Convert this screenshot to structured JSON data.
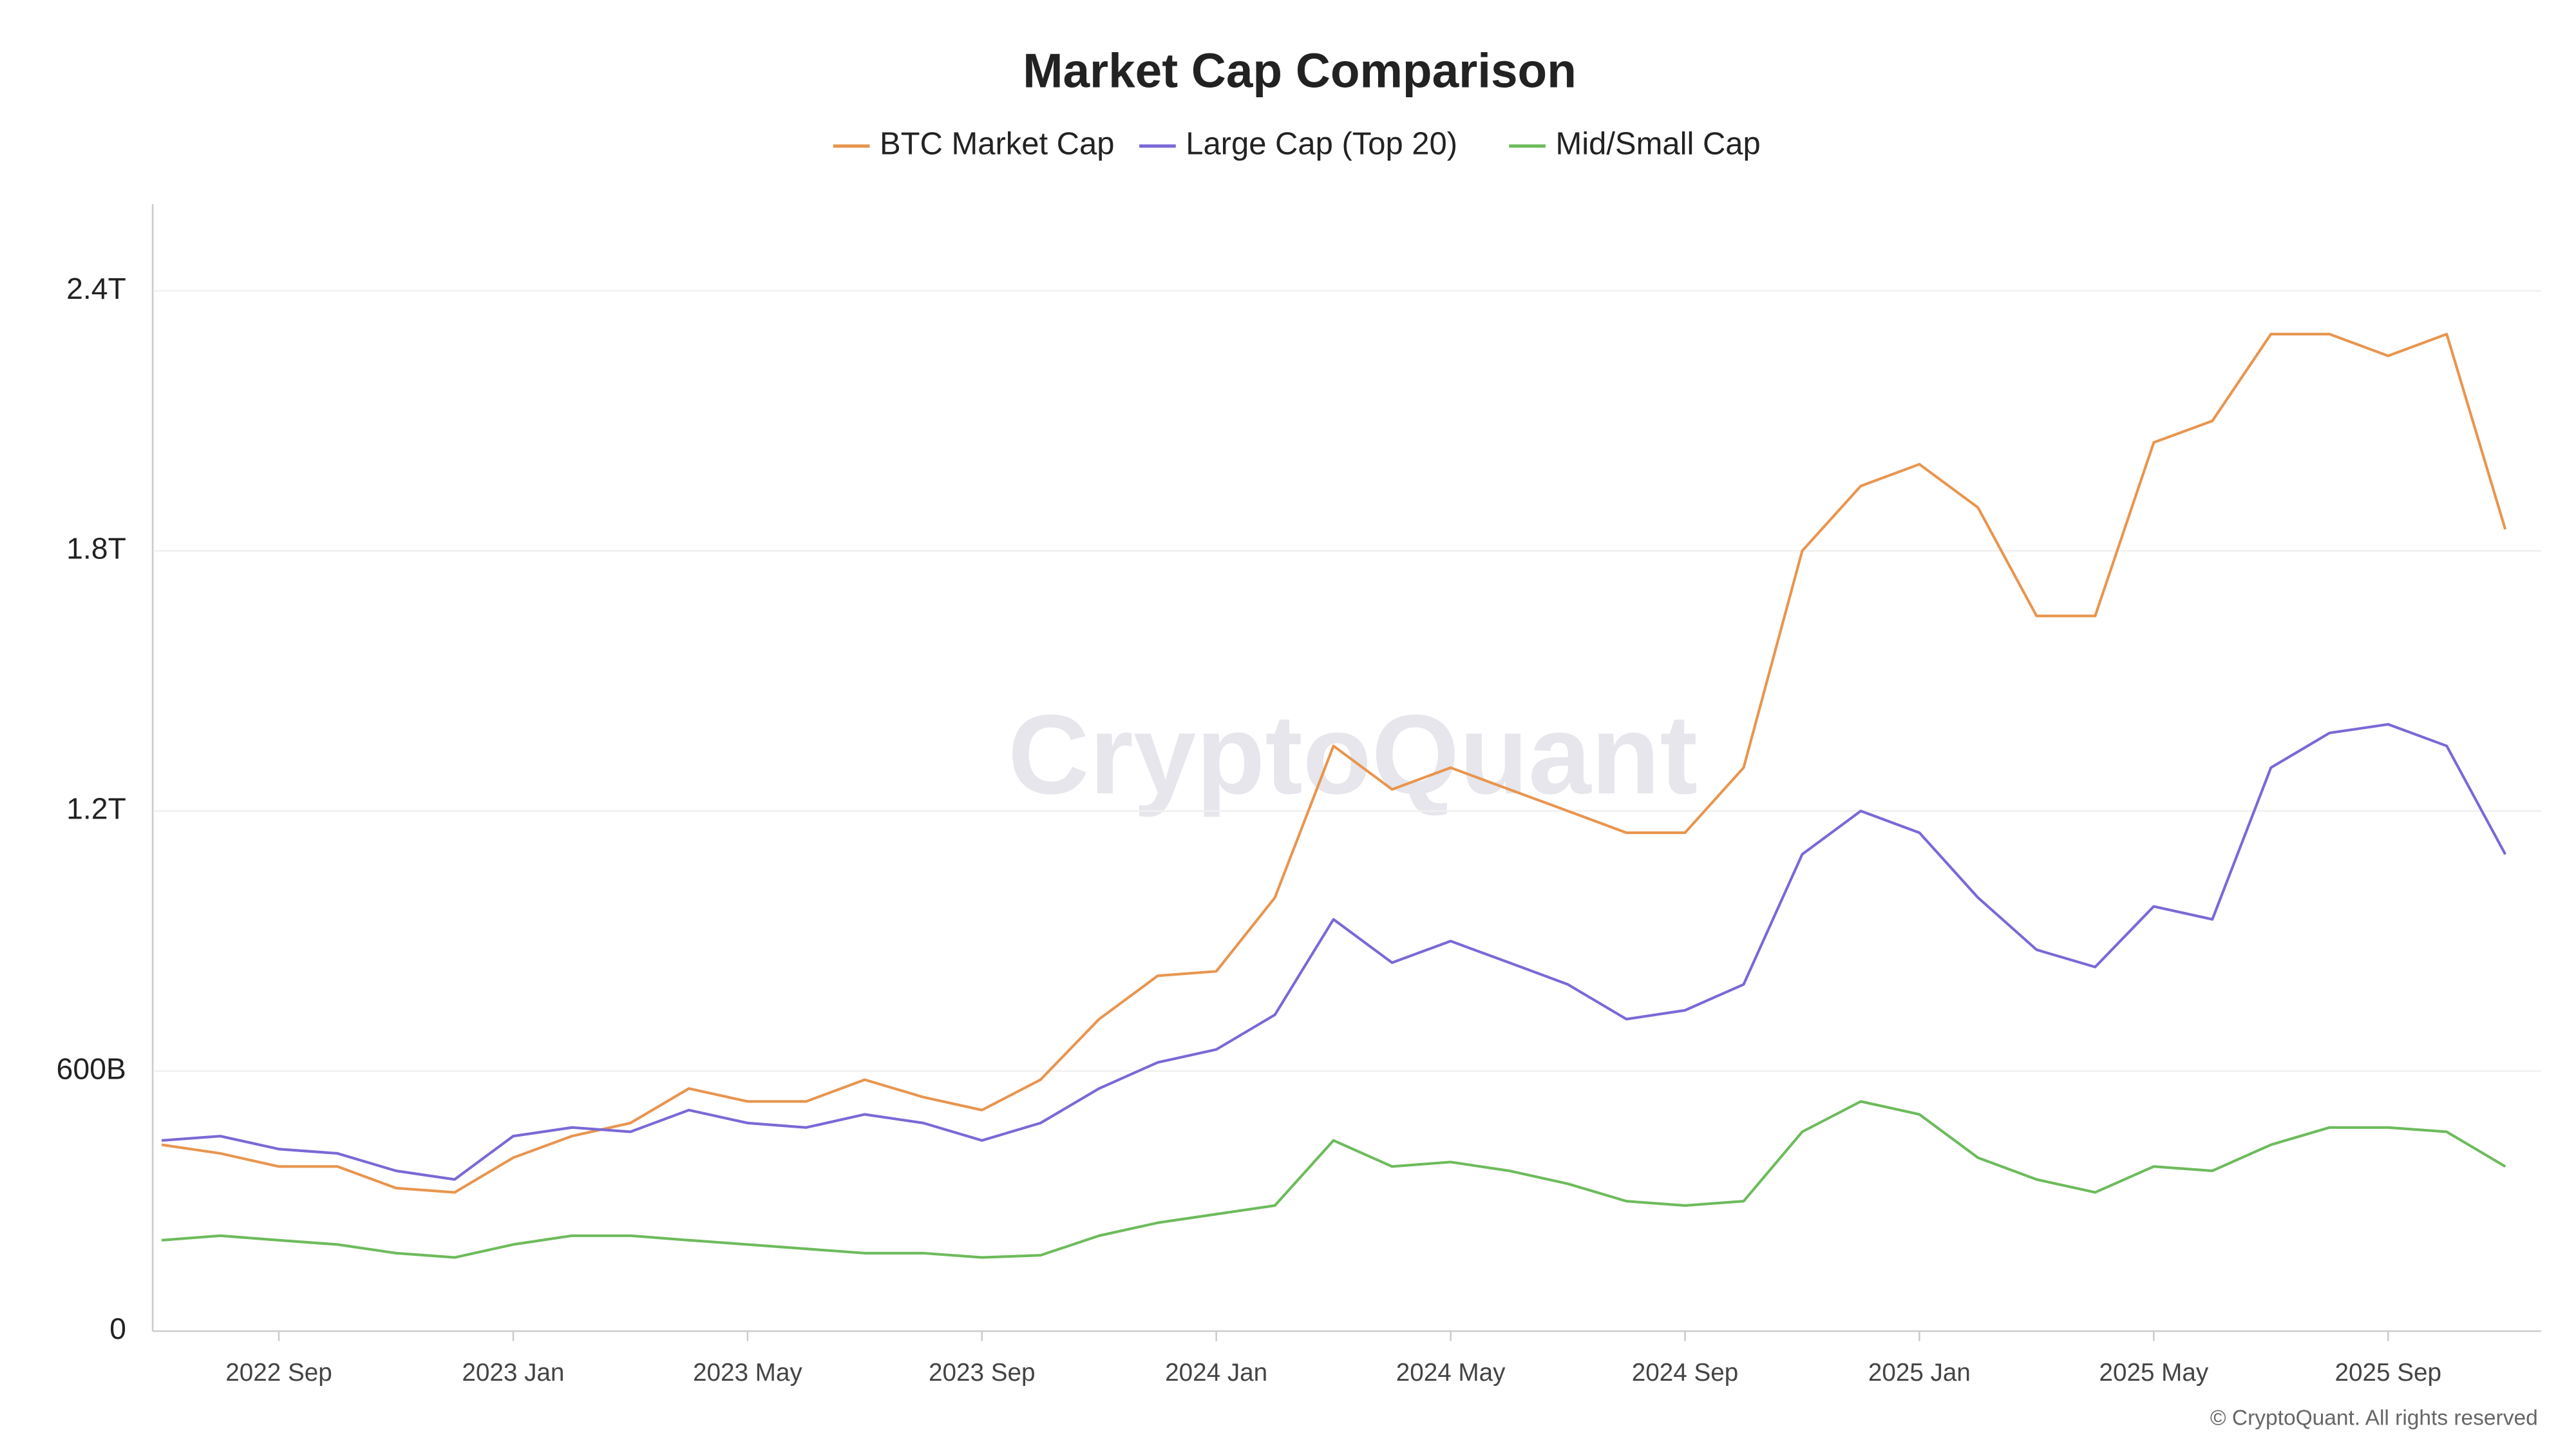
{
  "chart_data": {
    "type": "line",
    "title": "Market Cap Comparison",
    "watermark": "CryptoQuant",
    "credit": "© CryptoQuant. All rights reserved",
    "categories": [
      null,
      null,
      "2022 Sep",
      null,
      null,
      null,
      "2023 Jan",
      null,
      null,
      null,
      "2023 May",
      null,
      null,
      null,
      "2023 Sep",
      null,
      null,
      null,
      "2024 Jan",
      null,
      null,
      null,
      "2024 May",
      null,
      null,
      null,
      "2024 Sep",
      null,
      null,
      null,
      "2025 Jan",
      null,
      null,
      null,
      "2025 May",
      null,
      null,
      null,
      "2025 Sep",
      null,
      null
    ],
    "series": [
      {
        "name": "BTC Market Cap",
        "color": "#e8954f",
        "values": [
          430,
          410,
          380,
          380,
          330,
          320,
          400,
          450,
          480,
          560,
          530,
          530,
          580,
          540,
          510,
          580,
          720,
          820,
          830,
          1000,
          1350,
          1250,
          1300,
          1250,
          1200,
          1150,
          1150,
          1300,
          1800,
          1950,
          2000,
          1900,
          1650,
          1650,
          2050,
          2100,
          2300,
          2300,
          2250,
          2300,
          1850
        ]
      },
      {
        "name": "Large Cap (Top 20)",
        "color": "#7b68d6",
        "values": [
          440,
          450,
          420,
          410,
          370,
          350,
          450,
          470,
          460,
          510,
          480,
          470,
          500,
          480,
          440,
          480,
          560,
          620,
          650,
          730,
          950,
          850,
          900,
          850,
          800,
          720,
          740,
          800,
          1100,
          1200,
          1150,
          1000,
          880,
          840,
          980,
          950,
          1300,
          1380,
          1400,
          1350,
          1100
        ]
      },
      {
        "name": "Mid/Small Cap",
        "color": "#6dbb5c",
        "values": [
          210,
          220,
          210,
          200,
          180,
          170,
          200,
          220,
          220,
          210,
          200,
          190,
          180,
          180,
          170,
          175,
          220,
          250,
          270,
          290,
          440,
          380,
          390,
          370,
          340,
          300,
          290,
          300,
          460,
          530,
          500,
          400,
          350,
          320,
          380,
          370,
          430,
          470,
          470,
          460,
          380
        ]
      }
    ],
    "ylim": [
      0,
      2600
    ],
    "yticks": [
      0,
      {
        "value": 600,
        "label": "600B"
      },
      {
        "value": 1200,
        "label": "1.2T"
      },
      {
        "value": 1800,
        "label": "1.8T"
      },
      {
        "value": 2400,
        "label": "2.4T"
      }
    ],
    "grid": true,
    "legend": "top"
  }
}
